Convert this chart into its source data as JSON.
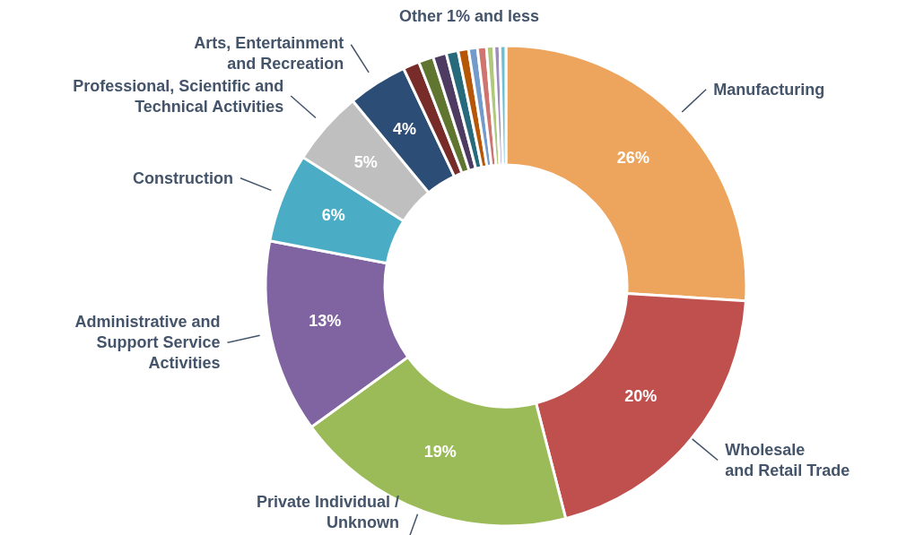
{
  "chart_data": {
    "type": "donut",
    "categories": [
      "Manufacturing",
      "Wholesale\nand Retail Trade",
      "Private Individual /\nUnknown",
      "Administrative and\nSupport Service\nActivities",
      "Construction",
      "Professional, Scientific and\nTechnical Activities",
      "Arts, Entertainment\nand Recreation",
      null,
      null,
      null,
      null,
      null,
      null,
      null,
      null,
      null,
      null
    ],
    "values": [
      26,
      20,
      19,
      13,
      6,
      5,
      4,
      1.1,
      1.0,
      0.9,
      0.8,
      0.7,
      0.6,
      0.6,
      0.5,
      0.4,
      0.4
    ],
    "value_labels": [
      "26%",
      "20%",
      "19%",
      "13%",
      "6%",
      "5%",
      "4%",
      null,
      null,
      null,
      null,
      null,
      null,
      null,
      null,
      null,
      null
    ],
    "colors": [
      "#eda55d",
      "#c0504d",
      "#9bbb59",
      "#8064a2",
      "#4bacc6",
      "#bfbfbf",
      "#2c4d75",
      "#772c2a",
      "#5f7530",
      "#4d3b62",
      "#276a7c",
      "#b65708",
      "#729aca",
      "#d0746f",
      "#afc97a",
      "#a08bbd",
      "#6cc0d5"
    ],
    "annotations": [
      "Other 1% and less"
    ]
  }
}
